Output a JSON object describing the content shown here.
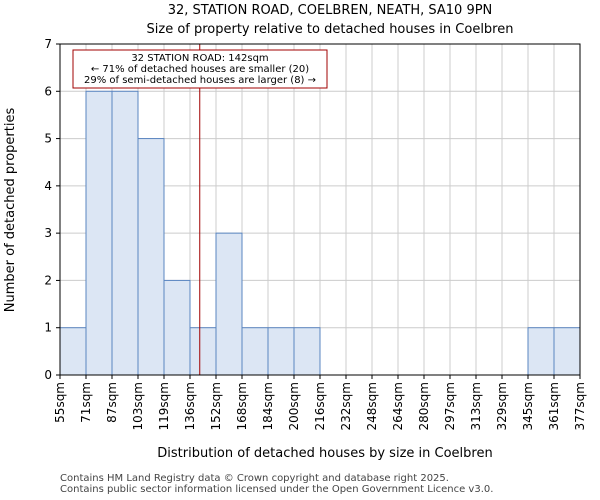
{
  "chart_data": {
    "type": "bar",
    "title": "32, STATION ROAD, COELBREN, NEATH, SA10 9PN",
    "subtitle": "Size of property relative to detached houses in Coelbren",
    "xlabel": "Distribution of detached houses by size in Coelbren",
    "ylabel": "Number of detached properties",
    "bin_edges": [
      "55sqm",
      "71sqm",
      "87sqm",
      "103sqm",
      "119sqm",
      "136sqm",
      "152sqm",
      "168sqm",
      "184sqm",
      "200sqm",
      "216sqm",
      "232sqm",
      "248sqm",
      "264sqm",
      "280sqm",
      "297sqm",
      "313sqm",
      "329sqm",
      "345sqm",
      "361sqm",
      "377sqm"
    ],
    "values": [
      1,
      6,
      6,
      5,
      2,
      1,
      3,
      1,
      1,
      1,
      0,
      0,
      0,
      0,
      0,
      0,
      0,
      0,
      1,
      1
    ],
    "ylim": [
      0,
      7
    ],
    "yticks": [
      0,
      1,
      2,
      3,
      4,
      5,
      6,
      7
    ],
    "grid": true,
    "bar_fill": "#dce6f4",
    "bar_edge": "#5a85c0",
    "marker": {
      "value_sqm": 142,
      "color": "#a00000",
      "lines": [
        "32 STATION ROAD: 142sqm",
        "← 71% of detached houses are smaller (20)",
        "29% of semi-detached houses are larger (8) →"
      ]
    }
  },
  "footer": {
    "line1": "Contains HM Land Registry data © Crown copyright and database right 2025.",
    "line2": "Contains public sector information licensed under the Open Government Licence v3.0."
  }
}
